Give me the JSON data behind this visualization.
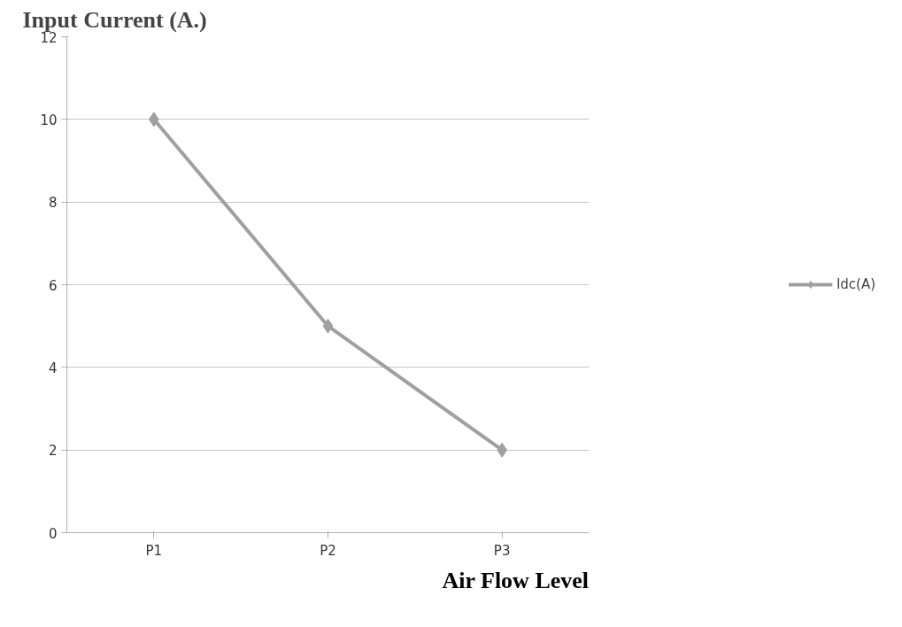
{
  "chart_data": {
    "type": "line",
    "ylabel": "Input Current (A.)",
    "xlabel": "Air Flow Level",
    "categories": [
      "P1",
      "P2",
      "P3"
    ],
    "series": [
      {
        "name": "Idc(A)",
        "color": "#a0a0a0",
        "values": [
          10,
          5,
          2
        ]
      }
    ],
    "ylim": [
      0,
      12
    ],
    "yticks": [
      0,
      2,
      4,
      6,
      8,
      10,
      12
    ],
    "grid": "y",
    "legend": "right",
    "marker": "diamond"
  }
}
